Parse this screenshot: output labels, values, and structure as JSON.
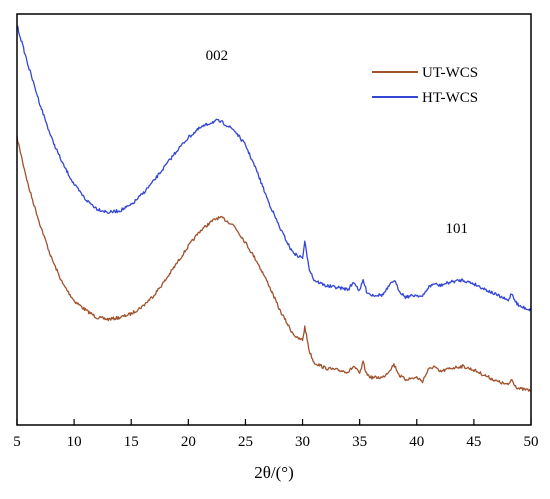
{
  "chart_data": {
    "type": "line",
    "title": "",
    "xlabel": "2θ/(°)",
    "ylabel": "",
    "xlim": [
      5,
      50
    ],
    "xticks": [
      "5",
      "10",
      "15",
      "20",
      "25",
      "30",
      "35",
      "40",
      "45",
      "50"
    ],
    "yticks": [],
    "grid": false,
    "legend": {
      "position": "top-right"
    },
    "annotations": [
      {
        "text": "002",
        "x": 22.5
      },
      {
        "text": "101",
        "x": 43.5
      }
    ],
    "series": [
      {
        "name": "UT-WCS",
        "color": "#a0522d",
        "x": [
          5,
          6,
          7,
          8,
          9,
          10,
          11,
          12,
          13,
          14,
          15,
          16,
          17,
          18,
          19,
          20,
          21,
          22,
          22.5,
          23,
          24,
          25,
          26,
          27,
          28,
          29,
          29.5,
          30,
          30.2,
          30.6,
          31,
          32,
          33,
          34,
          34.5,
          35,
          35.3,
          35.6,
          36,
          37,
          37.5,
          38,
          38.5,
          39,
          40,
          40.5,
          41,
          41.5,
          42,
          43,
          44,
          45,
          46,
          47,
          48,
          48.3,
          48.7,
          49,
          50
        ],
        "y": [
          70,
          57,
          47,
          38,
          31,
          26.5,
          24,
          22,
          21.5,
          22,
          23,
          25,
          28,
          32,
          36.5,
          41,
          45,
          47.5,
          48.5,
          48.5,
          46.5,
          42,
          37,
          31,
          24,
          18.5,
          16.5,
          16,
          19.5,
          13,
          10,
          8.5,
          8,
          7.5,
          9,
          7,
          10,
          7,
          6,
          6,
          7.5,
          9.5,
          6.5,
          5.5,
          6,
          5,
          8,
          9,
          7.5,
          8.5,
          9,
          8,
          6.5,
          5,
          4,
          5.5,
          3.5,
          3,
          2.5
        ]
      },
      {
        "name": "HT-WCS",
        "color": "#3346d6",
        "x": [
          5,
          6,
          7,
          8,
          9,
          10,
          11,
          12,
          13,
          14,
          15,
          16,
          17,
          18,
          19,
          20,
          21,
          22,
          22.5,
          23,
          24,
          25,
          26,
          27,
          28,
          29,
          29.5,
          30,
          30.2,
          30.6,
          31,
          32,
          33,
          34,
          34.5,
          35,
          35.3,
          35.6,
          36,
          37,
          37.5,
          38,
          38.5,
          39,
          40,
          40.5,
          41,
          41.5,
          42,
          43,
          44,
          45,
          46,
          47,
          48,
          48.3,
          48.7,
          49,
          50
        ],
        "y": [
          100,
          89,
          79,
          70,
          63,
          57.5,
          53.5,
          51,
          50,
          50.5,
          52,
          55,
          58.5,
          62.5,
          66.5,
          70,
          72.5,
          74,
          74.5,
          74,
          72,
          68,
          61,
          53,
          46,
          40,
          38.5,
          38,
          42,
          35,
          32,
          30.5,
          30,
          29.5,
          31.5,
          29,
          32,
          29,
          28,
          28,
          30,
          32,
          29,
          27.5,
          28,
          27.5,
          30,
          31,
          30.5,
          31.5,
          32,
          31,
          29.5,
          28,
          26.5,
          28.5,
          26,
          25,
          24
        ]
      }
    ]
  }
}
